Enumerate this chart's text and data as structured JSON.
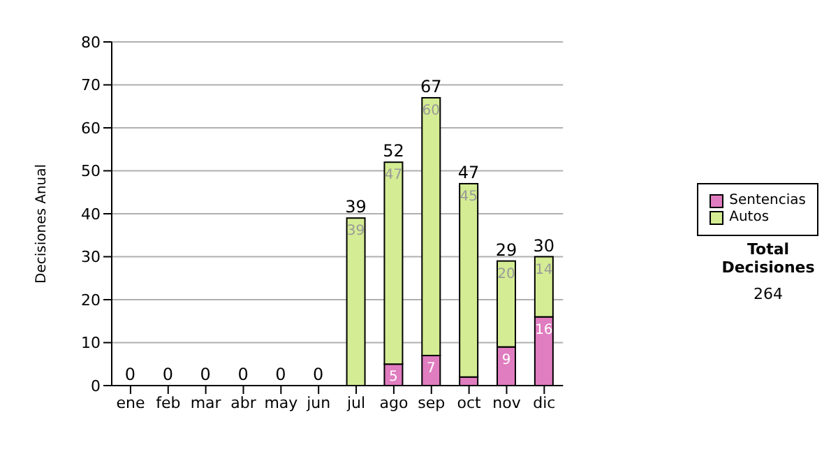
{
  "chart_data": {
    "type": "bar",
    "stacked": true,
    "ylabel": "Decisiones Anual",
    "categories": [
      "ene",
      "feb",
      "mar",
      "abr",
      "may",
      "jun",
      "jul",
      "ago",
      "sep",
      "oct",
      "nov",
      "dic"
    ],
    "series": [
      {
        "name": "Sentencias",
        "color": "#e07cc0",
        "values": [
          0,
          0,
          0,
          0,
          0,
          0,
          0,
          5,
          7,
          2,
          9,
          16
        ],
        "value_labels": [
          null,
          null,
          null,
          null,
          null,
          null,
          null,
          "5",
          "7",
          null,
          "9",
          "16"
        ]
      },
      {
        "name": "Autos",
        "color": "#d4ec94",
        "values": [
          0,
          0,
          0,
          0,
          0,
          0,
          39,
          47,
          60,
          45,
          20,
          14
        ],
        "value_labels": [
          null,
          null,
          null,
          null,
          null,
          null,
          "39",
          "47",
          "60",
          "45",
          "20",
          "14"
        ]
      }
    ],
    "totals": [
      "0",
      "0",
      "0",
      "0",
      "0",
      "0",
      "39",
      "52",
      "67",
      "47",
      "29",
      "30"
    ],
    "ylim": [
      0,
      80
    ],
    "yticks": [
      0,
      10,
      20,
      30,
      40,
      50,
      60,
      70,
      80
    ],
    "grid": "y",
    "legend": "right",
    "annotations": [
      "Total Decisiones",
      "264"
    ]
  }
}
